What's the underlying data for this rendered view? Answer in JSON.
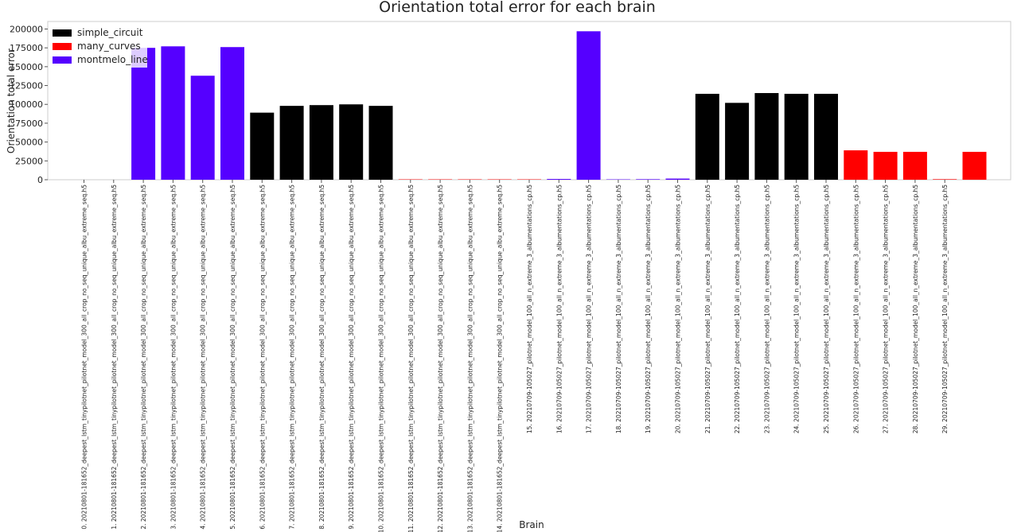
{
  "chart_data": {
    "type": "bar",
    "title": "Orientation total error for each brain",
    "xlabel": "Brain",
    "ylabel": "Orientation total error",
    "ylim": [
      0,
      210000
    ],
    "yticks": [
      0,
      25000,
      50000,
      75000,
      100000,
      125000,
      150000,
      175000,
      200000
    ],
    "grid": false,
    "legend_position": "top-left",
    "legend": [
      {
        "name": "simple_circuit",
        "color": "#000000"
      },
      {
        "name": "many_curves",
        "color": "#ff0000"
      },
      {
        "name": "montmelo_line",
        "color": "#5500ff"
      }
    ],
    "categories": [
      "0. 20210801-181652_deepest_lstm_tinypilotnet_pilotnet_model_300_all_crop_no_seq_unique_albu_extreme_seq.h5",
      "1. 20210801-181652_deepest_lstm_tinypilotnet_pilotnet_model_300_all_crop_no_seq_unique_albu_extreme_seq.h5",
      "2. 20210801-181652_deepest_lstm_tinypilotnet_pilotnet_model_300_all_crop_no_seq_unique_albu_extreme_seq.h5",
      "3. 20210801-181652_deepest_lstm_tinypilotnet_pilotnet_model_300_all_crop_no_seq_unique_albu_extreme_seq.h5",
      "4. 20210801-181652_deepest_lstm_tinypilotnet_pilotnet_model_300_all_crop_no_seq_unique_albu_extreme_seq.h5",
      "5. 20210801-181652_deepest_lstm_tinypilotnet_pilotnet_model_300_all_crop_no_seq_unique_albu_extreme_seq.h5",
      "6. 20210801-181652_deepest_lstm_tinypilotnet_pilotnet_model_300_all_crop_no_seq_unique_albu_extreme_seq.h5",
      "7. 20210801-181652_deepest_lstm_tinypilotnet_pilotnet_model_300_all_crop_no_seq_unique_albu_extreme_seq.h5",
      "8. 20210801-181652_deepest_lstm_tinypilotnet_pilotnet_model_300_all_crop_no_seq_unique_albu_extreme_seq.h5",
      "9. 20210801-181652_deepest_lstm_tinypilotnet_pilotnet_model_300_all_crop_no_seq_unique_albu_extreme_seq.h5",
      "10. 20210801-181652_deepest_lstm_tinypilotnet_pilotnet_model_300_all_crop_no_seq_unique_albu_extreme_seq.h5",
      "11. 20210801-181652_deepest_lstm_tinypilotnet_pilotnet_model_300_all_crop_no_seq_unique_albu_extreme_seq.h5",
      "12. 20210801-181652_deepest_lstm_tinypilotnet_pilotnet_model_300_all_crop_no_seq_unique_albu_extreme_seq.h5",
      "13. 20210801-181652_deepest_lstm_tinypilotnet_pilotnet_model_300_all_crop_no_seq_unique_albu_extreme_seq.h5",
      "14. 20210801-181652_deepest_lstm_tinypilotnet_pilotnet_model_300_all_crop_no_seq_unique_albu_extreme_seq.h5",
      "15. 20210709-105027_pilotnet_model_100_all_n_extreme_3_albumentations_cp.h5",
      "16. 20210709-105027_pilotnet_model_100_all_n_extreme_3_albumentations_cp.h5",
      "17. 20210709-105027_pilotnet_model_100_all_n_extreme_3_albumentations_cp.h5",
      "18. 20210709-105027_pilotnet_model_100_all_n_extreme_3_albumentations_cp.h5",
      "19. 20210709-105027_pilotnet_model_100_all_n_extreme_3_albumentations_cp.h5",
      "20. 20210709-105027_pilotnet_model_100_all_n_extreme_3_albumentations_cp.h5",
      "21. 20210709-105027_pilotnet_model_100_all_n_extreme_3_albumentations_cp.h5",
      "22. 20210709-105027_pilotnet_model_100_all_n_extreme_3_albumentations_cp.h5",
      "23. 20210709-105027_pilotnet_model_100_all_n_extreme_3_albumentations_cp.h5",
      "24. 20210709-105027_pilotnet_model_100_all_n_extreme_3_albumentations_cp.h5",
      "25. 20210709-105027_pilotnet_model_100_all_n_extreme_3_albumentations_cp.h5",
      "26. 20210709-105027_pilotnet_model_100_all_n_extreme_3_albumentations_cp.h5",
      "27. 20210709-105027_pilotnet_model_100_all_n_extreme_3_albumentations_cp.h5",
      "28. 20210709-105027_pilotnet_model_100_all_n_extreme_3_albumentations_cp.h5",
      "29. 20210709-105027_pilotnet_model_100_all_n_extreme_3_albumentations_cp.h5"
    ],
    "values": [
      0,
      175000,
      177000,
      138000,
      176000,
      89000,
      98000,
      99000,
      100000,
      98000,
      500,
      500,
      500,
      500,
      500,
      1000,
      197000,
      500,
      700,
      1500,
      114000,
      102000,
      115000,
      114000,
      114000,
      39000,
      37000,
      37000,
      700,
      37000
    ],
    "circuits": [
      "simple_circuit",
      "montmelo_line",
      "montmelo_line",
      "montmelo_line",
      "montmelo_line",
      "simple_circuit",
      "simple_circuit",
      "simple_circuit",
      "simple_circuit",
      "simple_circuit",
      "many_curves",
      "many_curves",
      "many_curves",
      "many_curves",
      "many_curves",
      "montmelo_line",
      "montmelo_line",
      "montmelo_line",
      "montmelo_line",
      "montmelo_line",
      "simple_circuit",
      "simple_circuit",
      "simple_circuit",
      "simple_circuit",
      "simple_circuit",
      "many_curves",
      "many_curves",
      "many_curves",
      "many_curves",
      "many_curves"
    ]
  }
}
